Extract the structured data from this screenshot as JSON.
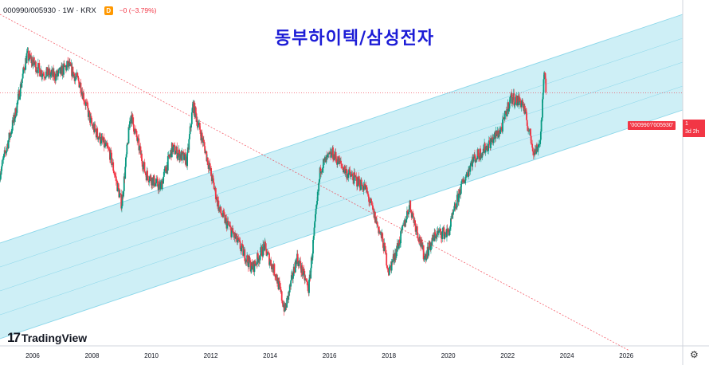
{
  "header": {
    "symbol": "000990/005930 · 1W · KRX",
    "badge": "D",
    "change": "−0 (−3.79%)"
  },
  "title": "동부하이텍/삼성전자",
  "price_tag": "'000990'/'005930'",
  "value_tag": {
    "value": "1",
    "countdown": "3d 2h"
  },
  "logo": {
    "mark": "17",
    "text": "TradingView"
  },
  "settings_icon": "gear-icon",
  "colors": {
    "up": "#089981",
    "down": "#f23645",
    "channel_fill": "#bde9f3",
    "channel_line": "#7fd3e8",
    "trendline": "#f23645",
    "price_line": "#f23645"
  },
  "chart_data": {
    "type": "candlestick",
    "title": "동부하이텍/삼성전자",
    "xlabel": "",
    "ylabel": "",
    "x_ticks": [
      "2006",
      "2008",
      "2010",
      "2012",
      "2014",
      "2016",
      "2018",
      "2020",
      "2022",
      "2024",
      "2026"
    ],
    "x_range": [
      2004.9,
      2027.9
    ],
    "y_axis_labels_visible": false,
    "y_scale": "log",
    "last_value": 1,
    "last_change": "−3.79%",
    "price_series_shape": [
      {
        "x": 2004.9,
        "y": 0.42
      },
      {
        "x": 2005.4,
        "y": 0.78
      },
      {
        "x": 2005.8,
        "y": 1.5
      },
      {
        "x": 2006.3,
        "y": 1.25
      },
      {
        "x": 2006.8,
        "y": 1.2
      },
      {
        "x": 2007.2,
        "y": 1.35
      },
      {
        "x": 2007.6,
        "y": 1.1
      },
      {
        "x": 2008.0,
        "y": 0.7
      },
      {
        "x": 2008.6,
        "y": 0.52
      },
      {
        "x": 2009.0,
        "y": 0.3
      },
      {
        "x": 2009.3,
        "y": 0.8
      },
      {
        "x": 2009.8,
        "y": 0.42
      },
      {
        "x": 2010.3,
        "y": 0.36
      },
      {
        "x": 2010.7,
        "y": 0.55
      },
      {
        "x": 2011.2,
        "y": 0.48
      },
      {
        "x": 2011.4,
        "y": 0.88
      },
      {
        "x": 2011.8,
        "y": 0.55
      },
      {
        "x": 2012.3,
        "y": 0.28
      },
      {
        "x": 2012.9,
        "y": 0.2
      },
      {
        "x": 2013.4,
        "y": 0.15
      },
      {
        "x": 2013.8,
        "y": 0.19
      },
      {
        "x": 2014.2,
        "y": 0.14
      },
      {
        "x": 2014.5,
        "y": 0.095
      },
      {
        "x": 2014.9,
        "y": 0.17
      },
      {
        "x": 2015.3,
        "y": 0.12
      },
      {
        "x": 2015.7,
        "y": 0.45
      },
      {
        "x": 2016.1,
        "y": 0.52
      },
      {
        "x": 2016.6,
        "y": 0.42
      },
      {
        "x": 2017.2,
        "y": 0.36
      },
      {
        "x": 2017.8,
        "y": 0.2
      },
      {
        "x": 2018.0,
        "y": 0.145
      },
      {
        "x": 2018.4,
        "y": 0.21
      },
      {
        "x": 2018.7,
        "y": 0.3
      },
      {
        "x": 2019.2,
        "y": 0.17
      },
      {
        "x": 2019.6,
        "y": 0.22
      },
      {
        "x": 2020.0,
        "y": 0.22
      },
      {
        "x": 2020.4,
        "y": 0.35
      },
      {
        "x": 2020.8,
        "y": 0.48
      },
      {
        "x": 2021.3,
        "y": 0.56
      },
      {
        "x": 2021.8,
        "y": 0.68
      },
      {
        "x": 2022.1,
        "y": 0.95
      },
      {
        "x": 2022.5,
        "y": 0.9
      },
      {
        "x": 2022.9,
        "y": 0.52
      },
      {
        "x": 2023.1,
        "y": 0.6
      },
      {
        "x": 2023.25,
        "y": 1.3
      },
      {
        "x": 2023.3,
        "y": 1.0
      }
    ],
    "overlays": [
      {
        "name": "regression channel",
        "type": "parallel channel"
      },
      {
        "name": "trendline",
        "type": "dashed line"
      },
      {
        "name": "price line",
        "type": "horizontal dotted line",
        "y": 1
      }
    ],
    "grid": false
  }
}
